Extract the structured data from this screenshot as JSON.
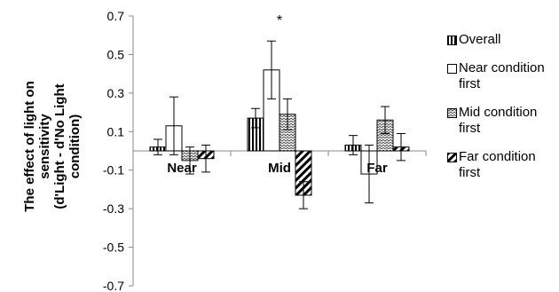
{
  "chart_data": {
    "type": "bar",
    "ylabel_lines": [
      "The effect of light on",
      "sensitivity",
      "(d'Light - d'No Light",
      "condition)"
    ],
    "categories": [
      "Near",
      "Mid",
      "Far"
    ],
    "ylim": [
      -0.7,
      0.7
    ],
    "yticks": [
      "0.7",
      "0.5",
      "0.3",
      "0.1",
      "-0.1",
      "-0.3",
      "-0.5",
      "-0.7"
    ],
    "ytick_values": [
      0.7,
      0.5,
      0.3,
      0.1,
      -0.1,
      -0.3,
      -0.5,
      -0.7
    ],
    "grid": false,
    "legend_position": "right",
    "series": [
      {
        "name": "Overall",
        "pattern": "vertical-stripes",
        "values": [
          0.02,
          0.17,
          0.03
        ],
        "errors": [
          0.04,
          0.05,
          0.05
        ]
      },
      {
        "name": "Near condition first",
        "pattern": "none",
        "values": [
          0.13,
          0.42,
          -0.12
        ],
        "errors": [
          0.15,
          0.15,
          0.15
        ]
      },
      {
        "name": "Mid condition first",
        "pattern": "waves",
        "values": [
          -0.05,
          0.19,
          0.16
        ],
        "errors": [
          0.07,
          0.08,
          0.07
        ]
      },
      {
        "name": "Far condition first",
        "pattern": "diagonal-stripes",
        "values": [
          -0.04,
          -0.23,
          0.02
        ],
        "errors": [
          0.07,
          0.07,
          0.07
        ]
      }
    ],
    "annotations": [
      {
        "category": "Mid",
        "text": "*"
      }
    ]
  }
}
